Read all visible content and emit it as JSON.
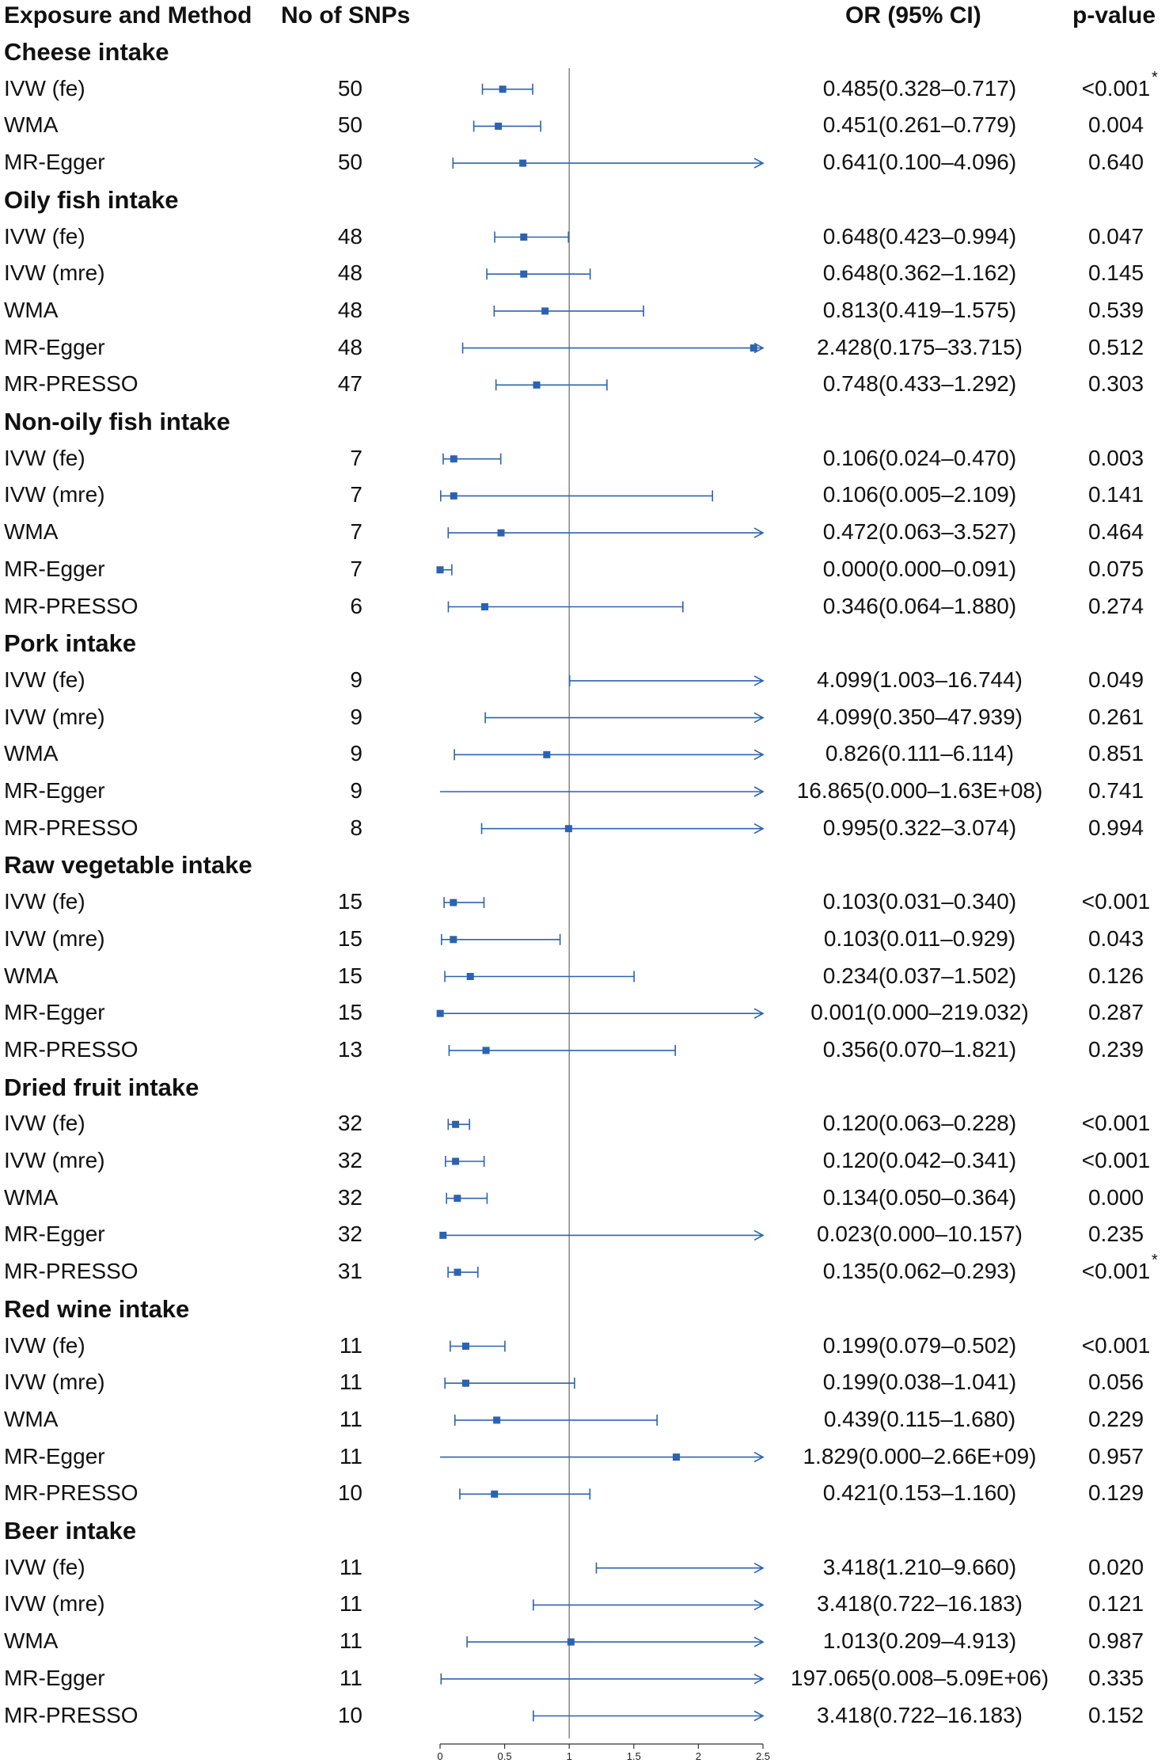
{
  "chart_data": {
    "type": "forest",
    "headers": {
      "exposure": "Exposure and Method",
      "snps": "No of SNPs",
      "or": "OR (95% CI)",
      "pvalue": "p-value"
    },
    "xlim": [
      0,
      2.5
    ],
    "reference_line": 1,
    "ticks": [
      {
        "value": 0,
        "label": "0"
      },
      {
        "value": 0.5,
        "label": "0.5"
      },
      {
        "value": 1,
        "label": "1"
      },
      {
        "value": 1.5,
        "label": "1.5"
      },
      {
        "value": 2,
        "label": "2"
      },
      {
        "value": 2.5,
        "label": "2.5"
      }
    ],
    "colors": {
      "series": "#2b63b0",
      "reference": "#7f7f7f",
      "axis": "#333333"
    },
    "groups": [
      {
        "name": "Cheese intake",
        "rows": [
          {
            "method": "IVW (fe)",
            "snps": "50",
            "or_text": "0.485(0.328–0.717)",
            "p": "<0.001",
            "star": "*",
            "or": 0.485,
            "lo": 0.328,
            "hi": 0.717
          },
          {
            "method": "WMA",
            "snps": "50",
            "or_text": "0.451(0.261–0.779)",
            "p": "0.004",
            "star": "",
            "or": 0.451,
            "lo": 0.261,
            "hi": 0.779
          },
          {
            "method": "MR-Egger",
            "snps": "50",
            "or_text": "0.641(0.100–4.096)",
            "p": "0.640",
            "star": "",
            "or": 0.641,
            "lo": 0.1,
            "hi": 4.096
          }
        ]
      },
      {
        "name": "Oily fish intake",
        "rows": [
          {
            "method": "IVW (fe)",
            "snps": "48",
            "or_text": "0.648(0.423–0.994)",
            "p": "0.047",
            "star": "",
            "or": 0.648,
            "lo": 0.423,
            "hi": 0.994
          },
          {
            "method": "IVW (mre)",
            "snps": "48",
            "or_text": "0.648(0.362–1.162)",
            "p": "0.145",
            "star": "",
            "or": 0.648,
            "lo": 0.362,
            "hi": 1.162
          },
          {
            "method": "WMA",
            "snps": "48",
            "or_text": "0.813(0.419–1.575)",
            "p": "0.539",
            "star": "",
            "or": 0.813,
            "lo": 0.419,
            "hi": 1.575
          },
          {
            "method": "MR-Egger",
            "snps": "48",
            "or_text": "2.428(0.175–33.715)",
            "p": "0.512",
            "star": "",
            "or": 2.428,
            "lo": 0.175,
            "hi": 33.715
          },
          {
            "method": "MR-PRESSO",
            "snps": "47",
            "or_text": "0.748(0.433–1.292)",
            "p": "0.303",
            "star": "",
            "or": 0.748,
            "lo": 0.433,
            "hi": 1.292
          }
        ]
      },
      {
        "name": "Non-oily fish intake",
        "rows": [
          {
            "method": "IVW (fe)",
            "snps": "7",
            "or_text": "0.106(0.024–0.470)",
            "p": "0.003",
            "star": "",
            "or": 0.106,
            "lo": 0.024,
            "hi": 0.47
          },
          {
            "method": "IVW (mre)",
            "snps": "7",
            "or_text": "0.106(0.005–2.109)",
            "p": "0.141",
            "star": "",
            "or": 0.106,
            "lo": 0.005,
            "hi": 2.109
          },
          {
            "method": "WMA",
            "snps": "7",
            "or_text": "0.472(0.063–3.527)",
            "p": "0.464",
            "star": "",
            "or": 0.472,
            "lo": 0.063,
            "hi": 3.527
          },
          {
            "method": "MR-Egger",
            "snps": "7",
            "or_text": "0.000(0.000–0.091)",
            "p": "0.075",
            "star": "",
            "or": 0.0,
            "lo": 0.0,
            "hi": 0.091
          },
          {
            "method": "MR-PRESSO",
            "snps": "6",
            "or_text": "0.346(0.064–1.880)",
            "p": "0.274",
            "star": "",
            "or": 0.346,
            "lo": 0.064,
            "hi": 1.88
          }
        ]
      },
      {
        "name": "Pork intake",
        "rows": [
          {
            "method": "IVW (fe)",
            "snps": "9",
            "or_text": "4.099(1.003–16.744)",
            "p": "0.049",
            "star": "",
            "or": 4.099,
            "lo": 1.003,
            "hi": 16.744
          },
          {
            "method": "IVW (mre)",
            "snps": "9",
            "or_text": "4.099(0.350–47.939)",
            "p": "0.261",
            "star": "",
            "or": 4.099,
            "lo": 0.35,
            "hi": 47.939
          },
          {
            "method": "WMA",
            "snps": "9",
            "or_text": "0.826(0.111–6.114)",
            "p": "0.851",
            "star": "",
            "or": 0.826,
            "lo": 0.111,
            "hi": 6.114
          },
          {
            "method": "MR-Egger",
            "snps": "9",
            "or_text": "16.865(0.000–1.63E+08)",
            "p": "0.741",
            "star": "",
            "or": 16.865,
            "lo": 0.0,
            "hi": 163000000
          },
          {
            "method": "MR-PRESSO",
            "snps": "8",
            "or_text": "0.995(0.322–3.074)",
            "p": "0.994",
            "star": "",
            "or": 0.995,
            "lo": 0.322,
            "hi": 3.074
          }
        ]
      },
      {
        "name": "Raw vegetable intake",
        "rows": [
          {
            "method": "IVW (fe)",
            "snps": "15",
            "or_text": "0.103(0.031–0.340)",
            "p": "<0.001",
            "star": "",
            "or": 0.103,
            "lo": 0.031,
            "hi": 0.34
          },
          {
            "method": "IVW (mre)",
            "snps": "15",
            "or_text": "0.103(0.011–0.929)",
            "p": "0.043",
            "star": "",
            "or": 0.103,
            "lo": 0.011,
            "hi": 0.929
          },
          {
            "method": "WMA",
            "snps": "15",
            "or_text": "0.234(0.037–1.502)",
            "p": "0.126",
            "star": "",
            "or": 0.234,
            "lo": 0.037,
            "hi": 1.502
          },
          {
            "method": "MR-Egger",
            "snps": "15",
            "or_text": "0.001(0.000–219.032)",
            "p": "0.287",
            "star": "",
            "or": 0.001,
            "lo": 0.0,
            "hi": 219.032
          },
          {
            "method": "MR-PRESSO",
            "snps": "13",
            "or_text": "0.356(0.070–1.821)",
            "p": "0.239",
            "star": "",
            "or": 0.356,
            "lo": 0.07,
            "hi": 1.821
          }
        ]
      },
      {
        "name": "Dried fruit intake",
        "rows": [
          {
            "method": "IVW (fe)",
            "snps": "32",
            "or_text": "0.120(0.063–0.228)",
            "p": "<0.001",
            "star": "",
            "or": 0.12,
            "lo": 0.063,
            "hi": 0.228
          },
          {
            "method": "IVW (mre)",
            "snps": "32",
            "or_text": "0.120(0.042–0.341)",
            "p": "<0.001",
            "star": "",
            "or": 0.12,
            "lo": 0.042,
            "hi": 0.341
          },
          {
            "method": "WMA",
            "snps": "32",
            "or_text": "0.134(0.050–0.364)",
            "p": "0.000",
            "star": "",
            "or": 0.134,
            "lo": 0.05,
            "hi": 0.364
          },
          {
            "method": "MR-Egger",
            "snps": "32",
            "or_text": "0.023(0.000–10.157)",
            "p": "0.235",
            "star": "",
            "or": 0.023,
            "lo": 0.0,
            "hi": 10.157
          },
          {
            "method": "MR-PRESSO",
            "snps": "31",
            "or_text": "0.135(0.062–0.293)",
            "p": "<0.001",
            "star": "*",
            "or": 0.135,
            "lo": 0.062,
            "hi": 0.293
          }
        ]
      },
      {
        "name": "Red wine intake",
        "rows": [
          {
            "method": "IVW (fe)",
            "snps": "11",
            "or_text": "0.199(0.079–0.502)",
            "p": "<0.001",
            "star": "",
            "or": 0.199,
            "lo": 0.079,
            "hi": 0.502
          },
          {
            "method": "IVW (mre)",
            "snps": "11",
            "or_text": "0.199(0.038–1.041)",
            "p": "0.056",
            "star": "",
            "or": 0.199,
            "lo": 0.038,
            "hi": 1.041
          },
          {
            "method": "WMA",
            "snps": "11",
            "or_text": "0.439(0.115–1.680)",
            "p": "0.229",
            "star": "",
            "or": 0.439,
            "lo": 0.115,
            "hi": 1.68
          },
          {
            "method": "MR-Egger",
            "snps": "11",
            "or_text": "1.829(0.000–2.66E+09)",
            "p": "0.957",
            "star": "",
            "or": 1.829,
            "lo": 0.0,
            "hi": 2660000000
          },
          {
            "method": "MR-PRESSO",
            "snps": "10",
            "or_text": "0.421(0.153–1.160)",
            "p": "0.129",
            "star": "",
            "or": 0.421,
            "lo": 0.153,
            "hi": 1.16
          }
        ]
      },
      {
        "name": "Beer intake",
        "rows": [
          {
            "method": "IVW (fe)",
            "snps": "11",
            "or_text": "3.418(1.210–9.660)",
            "p": "0.020",
            "star": "",
            "or": 3.418,
            "lo": 1.21,
            "hi": 9.66
          },
          {
            "method": "IVW (mre)",
            "snps": "11",
            "or_text": "3.418(0.722–16.183)",
            "p": "0.121",
            "star": "",
            "or": 3.418,
            "lo": 0.722,
            "hi": 16.183
          },
          {
            "method": "WMA",
            "snps": "11",
            "or_text": "1.013(0.209–4.913)",
            "p": "0.987",
            "star": "",
            "or": 1.013,
            "lo": 0.209,
            "hi": 4.913
          },
          {
            "method": "MR-Egger",
            "snps": "11",
            "or_text": "197.065(0.008–5.09E+06)",
            "p": "0.335",
            "star": "",
            "or": 197.065,
            "lo": 0.008,
            "hi": 5090000
          },
          {
            "method": "MR-PRESSO",
            "snps": "10",
            "or_text": "3.418(0.722–16.183)",
            "p": "0.152",
            "star": "",
            "or": 3.418,
            "lo": 0.722,
            "hi": 16.183
          }
        ]
      }
    ]
  }
}
